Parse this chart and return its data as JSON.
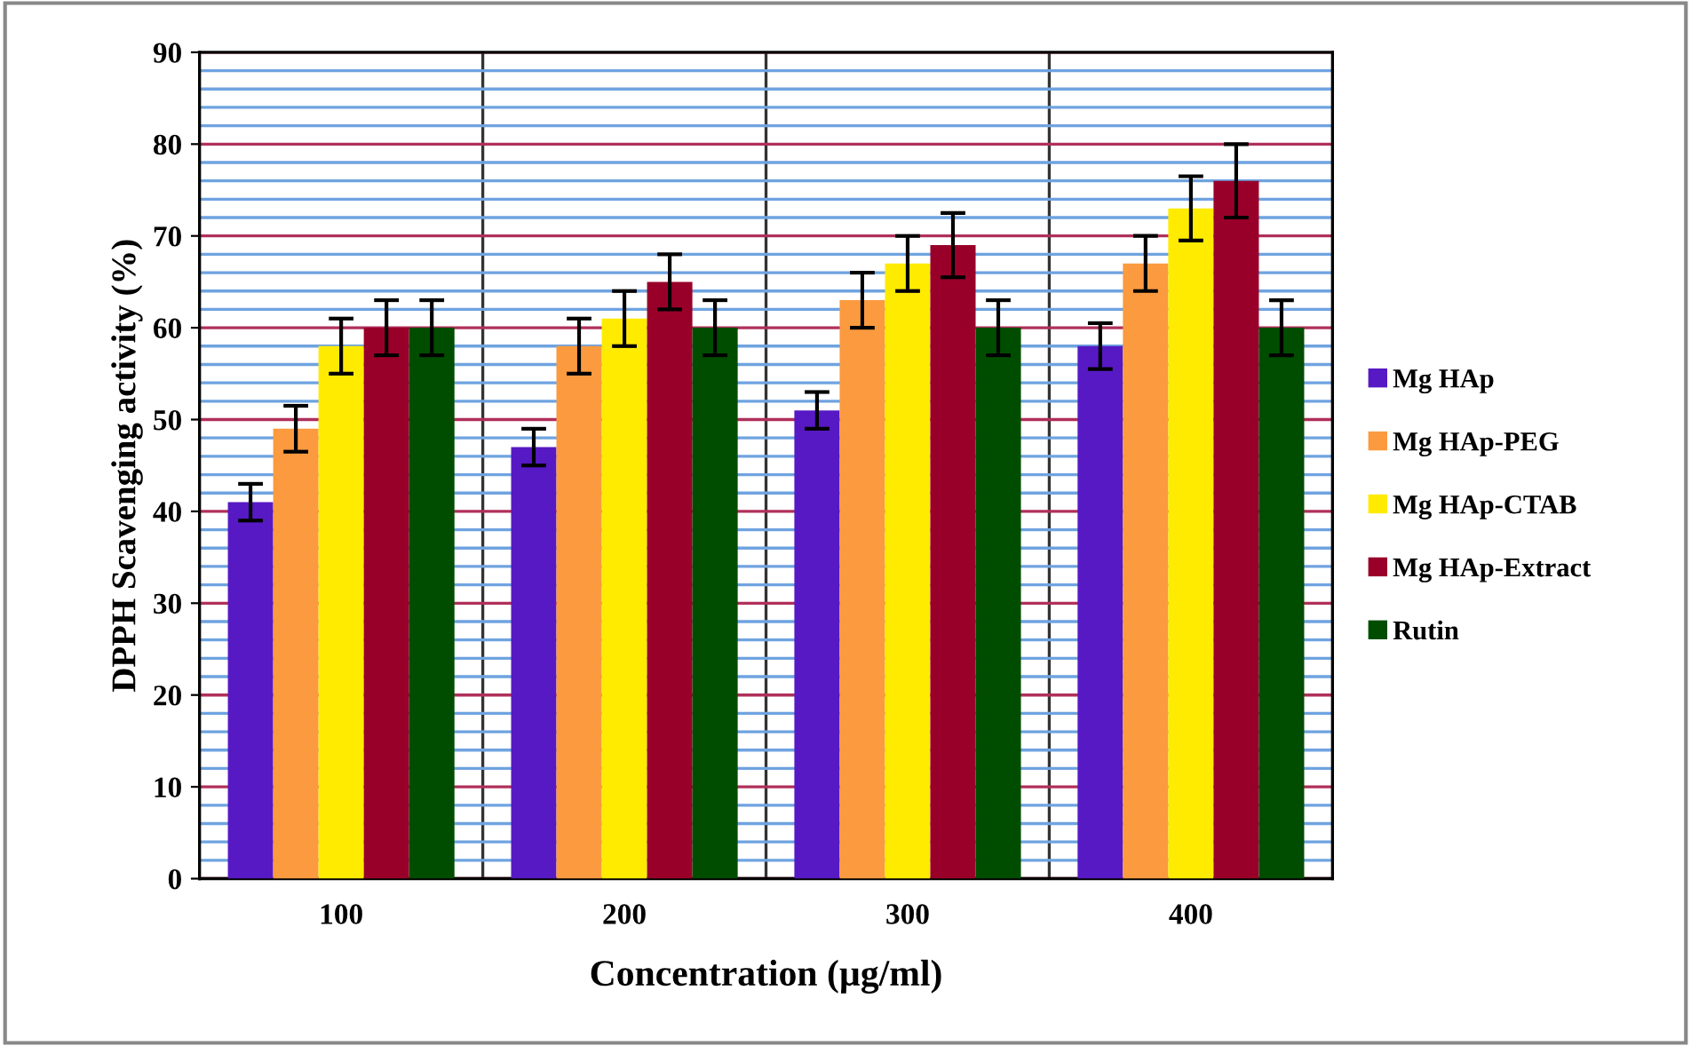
{
  "chart_data": {
    "type": "bar",
    "xlabel": "Concentration (µg/ml)",
    "ylabel": "DPPH Scavenging activity (%)",
    "categories": [
      "100",
      "200",
      "300",
      "400"
    ],
    "series": [
      {
        "name": "Mg HAp",
        "color": "#5719c4",
        "values": [
          41,
          47,
          51,
          58
        ],
        "errors": [
          2,
          2,
          2,
          2.5
        ]
      },
      {
        "name": "Mg HAp-PEG",
        "color": "#fb9a3f",
        "values": [
          49,
          58,
          63,
          67
        ],
        "errors": [
          2.5,
          3,
          3,
          3
        ]
      },
      {
        "name": "Mg HAp-CTAB",
        "color": "#ffeb00",
        "values": [
          58,
          61,
          67,
          73
        ],
        "errors": [
          3,
          3,
          3,
          3.5
        ]
      },
      {
        "name": "Mg HAp-Extract",
        "color": "#990029",
        "values": [
          60,
          65,
          69,
          76
        ],
        "errors": [
          3,
          3,
          3.5,
          4
        ]
      },
      {
        "name": "Rutin",
        "color": "#004d00",
        "values": [
          60,
          60,
          60,
          60
        ],
        "errors": [
          3,
          3,
          3,
          3
        ]
      }
    ],
    "ylim": [
      0,
      90
    ],
    "yticks": [
      0,
      {
        "value": 2,
        "label": null
      },
      {
        "value": 4,
        "label": null
      },
      {
        "value": 6,
        "label": null
      },
      {
        "value": 8,
        "label": null
      },
      10,
      {
        "value": 12,
        "label": null
      },
      {
        "value": 14,
        "label": null
      },
      {
        "value": 16,
        "label": null
      },
      {
        "value": 18,
        "label": null
      },
      20,
      {
        "value": 22,
        "label": null
      },
      {
        "value": 24,
        "label": null
      },
      {
        "value": 26,
        "label": null
      },
      {
        "value": 28,
        "label": null
      },
      30,
      {
        "value": 32,
        "label": null
      },
      {
        "value": 34,
        "label": null
      },
      {
        "value": 36,
        "label": null
      },
      {
        "value": 38,
        "label": null
      },
      40,
      {
        "value": 42,
        "label": null
      },
      {
        "value": 44,
        "label": null
      },
      {
        "value": 46,
        "label": null
      },
      {
        "value": 48,
        "label": null
      },
      50,
      {
        "value": 52,
        "label": null
      },
      {
        "value": 54,
        "label": null
      },
      {
        "value": 56,
        "label": null
      },
      {
        "value": 58,
        "label": null
      },
      60,
      {
        "value": 62,
        "label": null
      },
      {
        "value": 64,
        "label": null
      },
      {
        "value": 66,
        "label": null
      },
      {
        "value": 68,
        "label": null
      },
      70,
      {
        "value": 72,
        "label": null
      },
      {
        "value": 74,
        "label": null
      },
      {
        "value": 76,
        "label": null
      },
      {
        "value": 78,
        "label": null
      },
      80,
      {
        "value": 82,
        "label": null
      },
      {
        "value": 84,
        "label": null
      },
      {
        "value": 86,
        "label": null
      },
      {
        "value": 88,
        "label": null
      },
      90
    ],
    "grid": true,
    "legend": "right"
  }
}
